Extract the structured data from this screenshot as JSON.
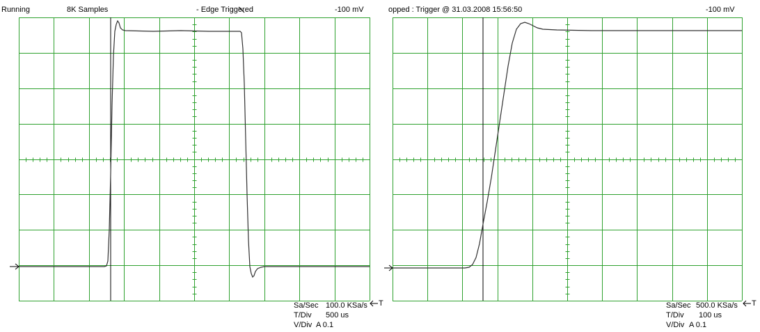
{
  "left": {
    "status": "Running",
    "samples": "8K Samples",
    "trigger": "- Edge Triggered",
    "edge_icon": "falling-edge-icon",
    "level": "-100 mV",
    "sa_sec_label": "Sa/Sec",
    "sa_sec_value": "100.0 KSa/s",
    "t_div_label": "T/Div",
    "t_div_value": "500 us",
    "v_div_label": "V/Div",
    "v_div_value": "A 0.1",
    "t_marker": "T"
  },
  "right": {
    "status": "opped : Trigger @ 31.03.2008 15:56:50",
    "level": "-100 mV",
    "sa_sec_label": "Sa/Sec",
    "sa_sec_value": "500.0 KSa/s",
    "t_div_label": "T/Div",
    "t_div_value": "100 us",
    "v_div_label": "V/Div",
    "v_div_value": "A 0.1",
    "t_marker": "T"
  },
  "colors": {
    "grid": "#2ea12e",
    "trace": "#303030",
    "background": "#ffffff"
  }
}
